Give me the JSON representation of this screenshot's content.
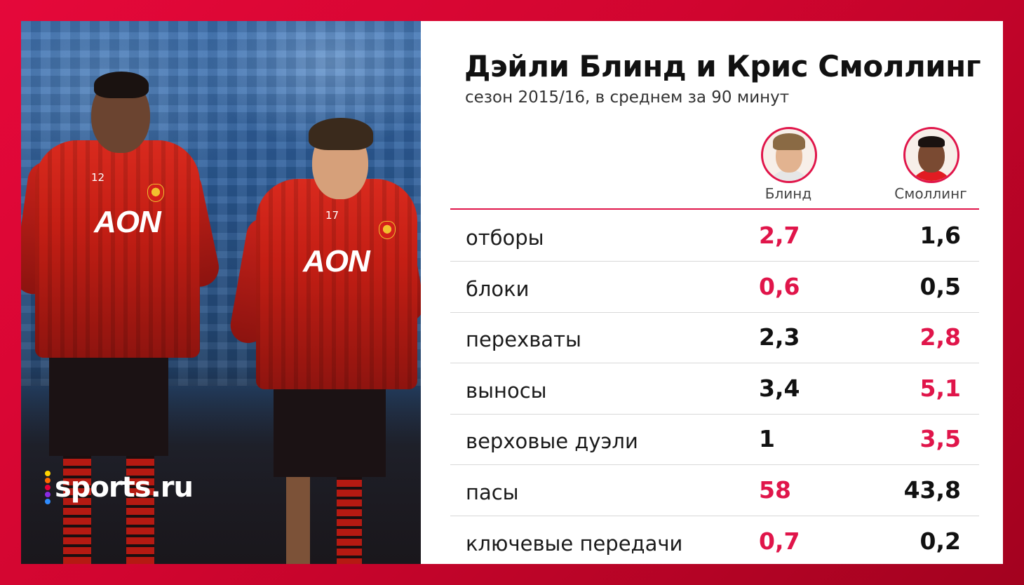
{
  "title": "Дэйли Блинд и Крис Смоллинг",
  "subtitle": "сезон 2015/16, в среднем за 90 минут",
  "colors": {
    "accent": "#e0154a",
    "neutral": "#111111",
    "background_frame": "#d60a35"
  },
  "players": [
    {
      "name": "Блинд",
      "avatar": "blind-avatar"
    },
    {
      "name": "Смоллинг",
      "avatar": "smalling-avatar"
    }
  ],
  "stats": [
    {
      "label": "отборы",
      "blind": "2,7",
      "smalling": "1,6",
      "leader": "blind"
    },
    {
      "label": "блоки",
      "blind": "0,6",
      "smalling": "0,5",
      "leader": "blind"
    },
    {
      "label": "перехваты",
      "blind": "2,3",
      "smalling": "2,8",
      "leader": "smalling"
    },
    {
      "label": "выносы",
      "blind": "3,4",
      "smalling": "5,1",
      "leader": "smalling"
    },
    {
      "label": "верховые дуэли",
      "blind": "1",
      "smalling": "3,5",
      "leader": "smalling"
    },
    {
      "label": "пасы",
      "blind": "58",
      "smalling": "43,8",
      "leader": "blind"
    },
    {
      "label": "ключевые передачи",
      "blind": "0,7",
      "smalling": "0,2",
      "leader": "blind"
    }
  ],
  "photo": {
    "sponsor": "AON",
    "numbers": [
      "12",
      "17"
    ],
    "logo": "sports.ru",
    "logo_dot_colors": [
      "#ffd400",
      "#ff6a00",
      "#e8003c",
      "#8a2be2",
      "#2f8cff"
    ]
  }
}
